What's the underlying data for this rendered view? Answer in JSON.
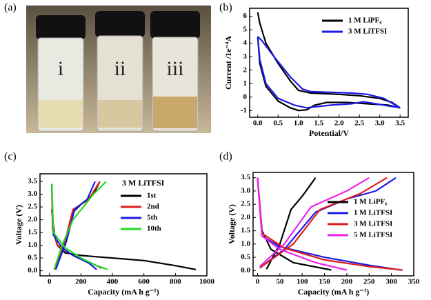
{
  "photo": {
    "label": "(a)",
    "vials": [
      "i",
      "ii",
      "iii"
    ]
  },
  "chart_data": [
    {
      "type": "line",
      "panel_label": "(b)",
      "xlabel": "Potential/V",
      "ylabel": "Current /1e⁻⁴A",
      "xlim": [
        -0.2,
        3.7
      ],
      "ylim": [
        -1.5,
        6.6
      ],
      "xticks": [
        {
          "value": 0,
          "label": "0.0"
        },
        0.5,
        {
          "value": 1,
          "label": "1.0"
        },
        1.5,
        {
          "value": 2,
          "label": "2.0"
        },
        2.5,
        {
          "value": 3,
          "label": "3.0"
        },
        3.5
      ],
      "yticks": [
        -1,
        0,
        1,
        2,
        3,
        4,
        5,
        6
      ],
      "legend": "upper right",
      "series": [
        {
          "name": "1 M LiPF₆",
          "color": "#000000",
          "x": [
            0,
            0.05,
            0.2,
            0.5,
            0.8,
            1.0,
            1.3,
            2.0,
            2.5,
            3.0,
            3.3,
            3.5,
            3.2,
            2.7,
            2.2,
            1.7,
            1.4,
            1.2,
            1.0,
            0.8,
            0.5,
            0.2,
            0.05,
            0
          ],
          "values": [
            6.3,
            5.5,
            4.0,
            2.5,
            1.2,
            0.5,
            0.3,
            0.2,
            0.1,
            -0.1,
            -0.4,
            -0.8,
            -0.6,
            -0.5,
            -0.4,
            -0.4,
            -0.6,
            -0.95,
            -1.0,
            -0.8,
            -0.3,
            0.8,
            2.5,
            4.5
          ]
        },
        {
          "name": "3 M LiTFSI",
          "color": "#1a1ae6",
          "x": [
            0,
            0.1,
            0.4,
            0.8,
            1.1,
            1.3,
            1.8,
            2.3,
            2.7,
            3.1,
            3.5,
            3.3,
            2.9,
            2.6,
            2.3,
            1.8,
            1.2,
            0.9,
            0.5,
            0.2,
            0.05,
            0
          ],
          "values": [
            4.5,
            4.2,
            3.0,
            1.5,
            0.6,
            0.4,
            0.35,
            0.3,
            0.2,
            -0.1,
            -0.8,
            -0.7,
            -0.5,
            -0.35,
            -0.5,
            -0.6,
            -0.8,
            -0.6,
            -0.1,
            1.0,
            2.8,
            4.5
          ]
        }
      ]
    },
    {
      "type": "line",
      "panel_label": "(c)",
      "xlabel": "Capacity (mA h g⁻¹)",
      "ylabel": "Voltage (V)",
      "annotation": "3 M LiTFSI",
      "xlim": [
        -60,
        1000
      ],
      "ylim": [
        -0.2,
        3.8
      ],
      "xticks": [
        0,
        200,
        400,
        600,
        800,
        1000
      ],
      "yticks": [
        {
          "value": 0,
          "label": "0.0"
        },
        0.5,
        {
          "value": 1,
          "label": "1.0"
        },
        1.5,
        {
          "value": 2,
          "label": "2.0"
        },
        2.5,
        {
          "value": 3,
          "label": "3.0"
        },
        3.5
      ],
      "legend": "upper right",
      "series": [
        {
          "name": "1st",
          "color": "#000000",
          "x": [
            15,
            30,
            50,
            100,
            200,
            300,
            400,
            600,
            800,
            930,
            null,
            30,
            100,
            150,
            200,
            280,
            320
          ],
          "values": [
            2.4,
            1.5,
            1.0,
            0.7,
            0.6,
            0.55,
            0.5,
            0.4,
            0.2,
            0.05,
            null,
            0.05,
            1.0,
            2.3,
            2.6,
            3.0,
            3.5
          ]
        },
        {
          "name": "2nd",
          "color": "#e01b1b",
          "x": [
            15,
            20,
            50,
            150,
            250,
            330,
            null,
            40,
            100,
            150,
            250,
            320
          ],
          "values": [
            3.4,
            1.6,
            1.0,
            0.6,
            0.35,
            0.1,
            null,
            0.05,
            1.2,
            2.4,
            2.8,
            3.5
          ]
        },
        {
          "name": "5th",
          "color": "#1a1ae6",
          "x": [
            15,
            25,
            80,
            150,
            250,
            300,
            null,
            40,
            110,
            160,
            240,
            290
          ],
          "values": [
            3.4,
            1.4,
            0.9,
            0.6,
            0.3,
            0.05,
            null,
            0.05,
            1.2,
            2.4,
            2.8,
            3.5
          ]
        },
        {
          "name": "10th",
          "color": "#22dd22",
          "x": [
            15,
            25,
            100,
            200,
            300,
            370,
            null,
            30,
            80,
            150,
            280,
            360
          ],
          "values": [
            3.4,
            1.5,
            0.9,
            0.5,
            0.2,
            0.05,
            null,
            0.05,
            1.0,
            2.0,
            3.0,
            3.5
          ]
        }
      ]
    },
    {
      "type": "line",
      "panel_label": "(d)",
      "xlabel": "Capacity (mA h g⁻¹)",
      "ylabel": "Voltage (V)",
      "xlim": [
        -10,
        350
      ],
      "ylim": [
        -0.2,
        3.7
      ],
      "xticks": [
        0,
        50,
        100,
        150,
        200,
        250,
        300,
        350
      ],
      "yticks": [
        {
          "value": 0,
          "label": "0.0"
        },
        0.5,
        {
          "value": 1,
          "label": "1.0"
        },
        1.5,
        {
          "value": 2,
          "label": "2.0"
        },
        2.5,
        {
          "value": 3,
          "label": "3.0"
        },
        3.5
      ],
      "legend": "center right",
      "series": [
        {
          "name": "1 M LiPF₆",
          "color": "#000000",
          "x": [
            0,
            10,
            30,
            80,
            165,
            null,
            20,
            50,
            75,
            100,
            130
          ],
          "values": [
            3.5,
            1.5,
            0.8,
            0.3,
            0.02,
            null,
            0.05,
            1.0,
            2.3,
            2.8,
            3.5
          ]
        },
        {
          "name": "1 M LiTFSI",
          "color": "#1a1ae6",
          "x": [
            0,
            10,
            50,
            150,
            250,
            320,
            null,
            5,
            60,
            130,
            200,
            265,
            310
          ],
          "values": [
            3.5,
            1.3,
            0.9,
            0.5,
            0.2,
            0.02,
            null,
            0.1,
            0.8,
            2.2,
            2.7,
            3.0,
            3.5
          ]
        },
        {
          "name": "3 M LiTFSI",
          "color": "#e01b1b",
          "x": [
            0,
            10,
            60,
            150,
            250,
            325,
            null,
            5,
            80,
            140,
            230,
            290
          ],
          "values": [
            3.5,
            1.4,
            0.85,
            0.4,
            0.15,
            0.02,
            null,
            0.1,
            1.0,
            2.3,
            2.9,
            3.5
          ]
        },
        {
          "name": "5 M LiTFSI",
          "color": "#ee22ee",
          "x": [
            0,
            10,
            50,
            130,
            200,
            null,
            5,
            60,
            120,
            200,
            250
          ],
          "values": [
            3.5,
            1.3,
            0.8,
            0.3,
            0.02,
            null,
            0.15,
            1.0,
            2.4,
            3.0,
            3.5
          ]
        }
      ]
    }
  ]
}
